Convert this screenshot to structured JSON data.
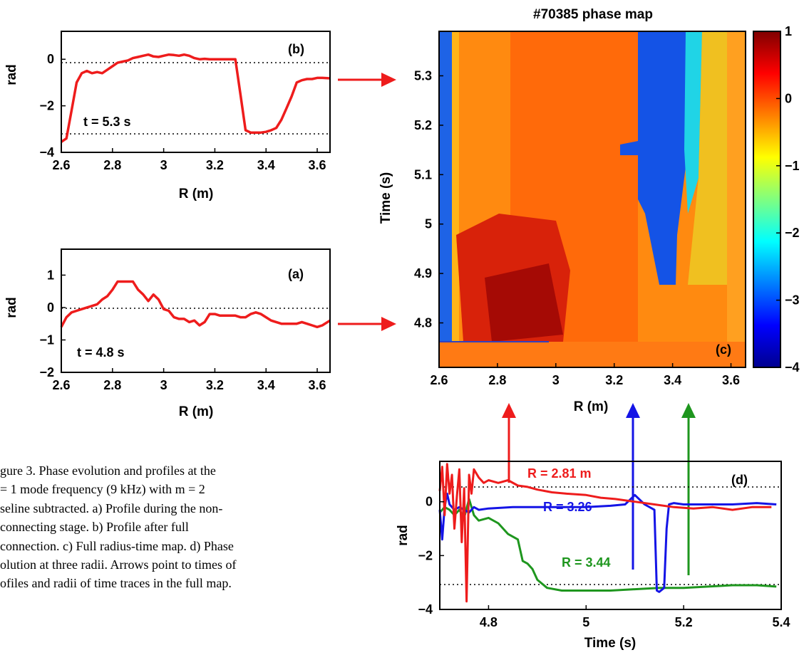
{
  "figure": {
    "panel_b": {
      "label": "(b)",
      "annotation": "t = 5.3 s",
      "ylabel": "rad",
      "xlabel": "R  (m)",
      "xticks": [
        "2.6",
        "2.8",
        "3",
        "3.2",
        "3.4",
        "3.6"
      ],
      "yticks": [
        "0",
        "−2",
        "−4"
      ]
    },
    "panel_a": {
      "label": "(a)",
      "annotation": "t = 4.8 s",
      "ylabel": "rad",
      "xlabel": "R  (m)",
      "xticks": [
        "2.6",
        "2.8",
        "3",
        "3.2",
        "3.4",
        "3.6"
      ],
      "yticks": [
        "1",
        "0",
        "−1",
        "−2"
      ]
    },
    "panel_c": {
      "title": "#70385 phase map",
      "label": "(c)",
      "ylabel": "Time (s)",
      "xlabel": "R  (m)",
      "xticks": [
        "2.6",
        "2.8",
        "3",
        "3.2",
        "3.4",
        "3.6"
      ],
      "yticks": [
        "5.3",
        "5.2",
        "5.1",
        "5",
        "4.9",
        "4.8"
      ],
      "colorbar_ticks": [
        "1",
        "0",
        "−1",
        "−2",
        "−3",
        "−4"
      ]
    },
    "panel_d": {
      "label": "(d)",
      "ylabel": "rad",
      "xlabel": "Time (s)",
      "xticks": [
        "4.8",
        "5",
        "5.2",
        "5.4"
      ],
      "yticks": [
        "0",
        "−2",
        "−4"
      ],
      "trace_labels": {
        "red": "R = 2.81 m",
        "blue": "R = 3.26",
        "green": "R = 3.44"
      }
    },
    "colors": {
      "red": "#ee1c1c",
      "blue": "#1414e6",
      "green": "#1e961e"
    }
  },
  "caption": {
    "lines": [
      "gure 3.  Phase  evolution  and  profiles  at  the",
      "= 1  mode  frequency  (9  kHz)  with  m = 2",
      "seline subtracted. a) Profile during the non-",
      "connecting      stage.     b)     Profile     after     full",
      "connection. c) Full radius-time map. d) Phase",
      "olution at three radii. Arrows point to times of",
      "ofiles and radii of time traces in the full map."
    ]
  },
  "chart_data": [
    {
      "id": "b",
      "type": "line",
      "annotation": "t = 5.3 s",
      "xlabel": "R  (m)",
      "ylabel": "rad",
      "xlim": [
        2.6,
        3.65
      ],
      "ylim": [
        -4,
        1.2
      ],
      "reference_lines_y": [
        0,
        -3.14
      ],
      "series": [
        {
          "color": "#ee1c1c",
          "x": [
            2.6,
            2.62,
            2.64,
            2.66,
            2.68,
            2.7,
            2.72,
            2.74,
            2.76,
            2.78,
            2.8,
            2.82,
            2.84,
            2.86,
            2.88,
            2.9,
            2.92,
            2.94,
            2.96,
            2.98,
            3.0,
            3.02,
            3.04,
            3.06,
            3.08,
            3.1,
            3.12,
            3.14,
            3.16,
            3.18,
            3.2,
            3.22,
            3.24,
            3.26,
            3.28,
            3.3,
            3.32,
            3.34,
            3.36,
            3.38,
            3.4,
            3.42,
            3.44,
            3.46,
            3.48,
            3.5,
            3.52,
            3.54,
            3.56,
            3.58,
            3.6,
            3.62,
            3.65
          ],
          "y": [
            -3.55,
            -3.4,
            -2.2,
            -1.0,
            -0.6,
            -0.5,
            -0.6,
            -0.55,
            -0.6,
            -0.45,
            -0.3,
            -0.15,
            -0.1,
            -0.05,
            0.05,
            0.1,
            0.15,
            0.2,
            0.12,
            0.1,
            0.15,
            0.2,
            0.18,
            0.15,
            0.2,
            0.15,
            0.05,
            0.0,
            0.02,
            0.0,
            0.0,
            0.0,
            0.0,
            0.0,
            0.0,
            -1.5,
            -3.05,
            -3.15,
            -3.15,
            -3.15,
            -3.12,
            -3.05,
            -2.95,
            -2.6,
            -2.1,
            -1.6,
            -1.0,
            -0.9,
            -0.85,
            -0.85,
            -0.8,
            -0.8,
            -0.82
          ]
        }
      ]
    },
    {
      "id": "a",
      "type": "line",
      "annotation": "t = 4.8 s",
      "xlabel": "R  (m)",
      "ylabel": "rad",
      "xlim": [
        2.6,
        3.65
      ],
      "ylim": [
        -2,
        1.8
      ],
      "reference_lines_y": [
        0
      ],
      "series": [
        {
          "color": "#ee1c1c",
          "x": [
            2.6,
            2.62,
            2.64,
            2.66,
            2.68,
            2.7,
            2.72,
            2.74,
            2.76,
            2.78,
            2.8,
            2.82,
            2.84,
            2.86,
            2.88,
            2.9,
            2.92,
            2.94,
            2.96,
            2.98,
            3.0,
            3.02,
            3.04,
            3.06,
            3.08,
            3.1,
            3.12,
            3.14,
            3.16,
            3.18,
            3.2,
            3.22,
            3.24,
            3.26,
            3.28,
            3.3,
            3.32,
            3.34,
            3.36,
            3.38,
            3.4,
            3.42,
            3.44,
            3.46,
            3.48,
            3.5,
            3.52,
            3.54,
            3.56,
            3.58,
            3.6,
            3.62,
            3.65
          ],
          "y": [
            -0.6,
            -0.3,
            -0.15,
            -0.1,
            -0.05,
            0.0,
            0.05,
            0.1,
            0.25,
            0.35,
            0.55,
            0.8,
            0.8,
            0.8,
            0.8,
            0.55,
            0.4,
            0.2,
            0.4,
            0.25,
            -0.05,
            -0.1,
            -0.3,
            -0.35,
            -0.35,
            -0.45,
            -0.4,
            -0.55,
            -0.45,
            -0.2,
            -0.2,
            -0.25,
            -0.25,
            -0.25,
            -0.25,
            -0.3,
            -0.3,
            -0.2,
            -0.15,
            -0.2,
            -0.3,
            -0.4,
            -0.45,
            -0.5,
            -0.5,
            -0.5,
            -0.5,
            -0.45,
            -0.5,
            -0.55,
            -0.6,
            -0.55,
            -0.4
          ]
        }
      ]
    },
    {
      "id": "c",
      "type": "heatmap",
      "title": "#70385 phase map",
      "xlabel": "R  (m)",
      "ylabel": "Time (s)",
      "xlim": [
        2.6,
        3.65
      ],
      "ylim": [
        4.71,
        5.39
      ],
      "clim": [
        -4,
        1
      ],
      "colormap": "jet",
      "regions": [
        {
          "desc": "left edge",
          "r_range": [
            2.6,
            2.64
          ],
          "value": -2.5
        },
        {
          "desc": "core",
          "r_range": [
            2.64,
            3.28
          ],
          "value": 0.3
        },
        {
          "desc": "dark core late",
          "r_range": [
            2.72,
            2.98
          ],
          "t_range": [
            4.71,
            4.95
          ],
          "value": 0.75
        },
        {
          "desc": "island",
          "r_range": [
            3.28,
            3.46
          ],
          "t_range": [
            4.87,
            5.39
          ],
          "value": -3.2
        },
        {
          "desc": "outer",
          "r_range": [
            3.46,
            3.65
          ],
          "value": -0.8
        }
      ]
    },
    {
      "id": "d",
      "type": "line",
      "xlabel": "Time (s)",
      "ylabel": "rad",
      "xlim": [
        4.7,
        5.4
      ],
      "ylim": [
        -4,
        1.5
      ],
      "reference_lines_y": [
        0,
        -3.14
      ],
      "series": [
        {
          "name": "R = 2.81 m",
          "color": "#ee1c1c",
          "x": [
            4.7,
            4.705,
            4.71,
            4.715,
            4.72,
            4.725,
            4.73,
            4.735,
            4.74,
            4.745,
            4.75,
            4.755,
            4.76,
            4.765,
            4.77,
            4.78,
            4.79,
            4.8,
            4.82,
            4.84,
            4.86,
            4.88,
            4.9,
            4.93,
            4.96,
            5.0,
            5.03,
            5.06,
            5.1,
            5.14,
            5.18,
            5.22,
            5.26,
            5.3,
            5.34,
            5.38
          ],
          "y": [
            0.4,
            1.3,
            -0.5,
            1.4,
            0.3,
            1.0,
            -1.0,
            0.2,
            1.2,
            -1.5,
            0.5,
            -3.7,
            1.0,
            0.3,
            1.2,
            0.9,
            0.7,
            0.8,
            0.7,
            0.8,
            0.6,
            0.55,
            0.45,
            0.35,
            0.3,
            0.25,
            0.15,
            0.1,
            0.0,
            -0.1,
            -0.2,
            -0.25,
            -0.2,
            -0.3,
            -0.2,
            -0.2
          ]
        },
        {
          "name": "R = 3.26",
          "color": "#1414e6",
          "x": [
            4.7,
            4.705,
            4.71,
            4.715,
            4.72,
            4.73,
            4.74,
            4.75,
            4.76,
            4.77,
            4.78,
            4.8,
            4.85,
            4.9,
            4.95,
            5.0,
            5.05,
            5.08,
            5.1,
            5.12,
            5.14,
            5.145,
            5.15,
            5.16,
            5.165,
            5.17,
            5.18,
            5.2,
            5.25,
            5.3,
            5.35,
            5.39
          ],
          "y": [
            -0.3,
            -1.4,
            -0.2,
            0.3,
            -0.1,
            -0.3,
            -0.2,
            -0.3,
            -0.4,
            -0.2,
            -0.3,
            -0.25,
            -0.2,
            -0.2,
            -0.2,
            -0.2,
            -0.15,
            -0.1,
            0.25,
            -0.1,
            -0.3,
            -3.3,
            -3.35,
            -3.2,
            -1.0,
            -0.1,
            -0.05,
            -0.1,
            -0.1,
            -0.1,
            -0.05,
            -0.1
          ]
        },
        {
          "name": "R = 3.44",
          "color": "#1e961e",
          "x": [
            4.7,
            4.71,
            4.72,
            4.73,
            4.74,
            4.75,
            4.76,
            4.77,
            4.78,
            4.8,
            4.82,
            4.84,
            4.86,
            4.87,
            4.88,
            4.89,
            4.9,
            4.92,
            4.95,
            5.0,
            5.05,
            5.1,
            5.15,
            5.2,
            5.25,
            5.3,
            5.35,
            5.39
          ],
          "y": [
            -0.4,
            -0.2,
            -0.3,
            -0.5,
            -0.3,
            -0.6,
            0.1,
            -0.5,
            -0.7,
            -0.6,
            -0.8,
            -1.2,
            -1.4,
            -2.2,
            -2.3,
            -2.5,
            -2.9,
            -3.2,
            -3.3,
            -3.3,
            -3.3,
            -3.25,
            -3.2,
            -3.2,
            -3.15,
            -3.1,
            -3.1,
            -3.15
          ]
        }
      ]
    }
  ]
}
